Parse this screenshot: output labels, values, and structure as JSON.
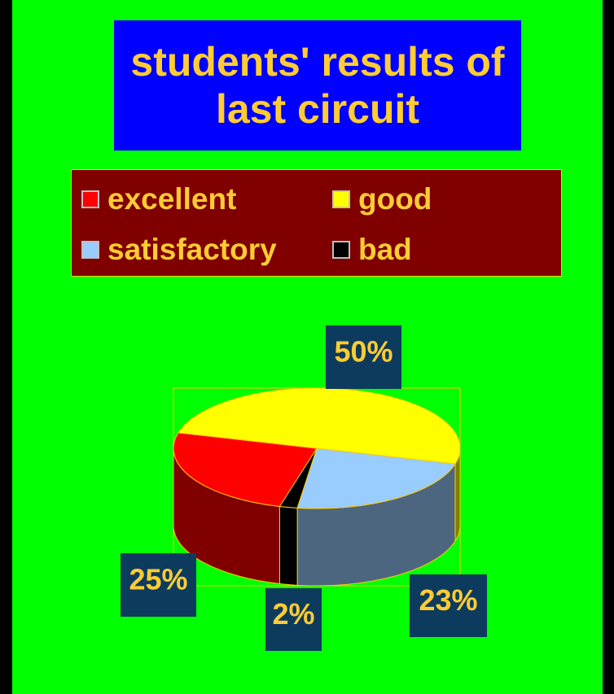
{
  "chart_data": {
    "type": "pie",
    "title": "students' results of last circuit",
    "categories": [
      "excellent",
      "good",
      "satisfactory",
      "bad"
    ],
    "values": [
      25,
      50,
      23,
      2
    ],
    "value_labels": [
      "25%",
      "50%",
      "23%",
      "2%"
    ],
    "colors": [
      "#ff0000",
      "#ffff00",
      "#99ccff",
      "#000000"
    ],
    "legend": "top"
  }
}
